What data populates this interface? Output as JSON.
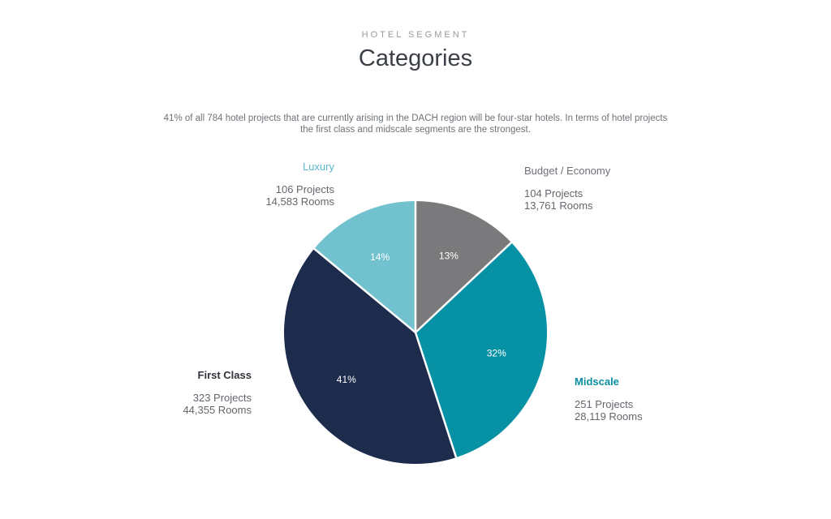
{
  "header": {
    "eyebrow": "HOTEL SEGMENT",
    "title": "Categories"
  },
  "description": {
    "line1": "41% of all 784 hotel projects that are currently arising in the DACH region will be four-star hotels. In terms of hotel projects",
    "line2": "the first class and midscale segments are the strongest."
  },
  "chart_data": {
    "type": "pie",
    "title": "Hotel Segment Categories",
    "total_projects": 784,
    "start_angle_deg": 0,
    "direction": "clockwise",
    "percent_label_color": "#ffffff",
    "separator_color": "#ffffff",
    "slices": [
      {
        "label": "Budget / Economy",
        "percent": 13,
        "projects": "104 Projects",
        "rooms": "13,761 Rooms",
        "color": "#7a7a7c"
      },
      {
        "label": "Midscale",
        "percent": 32,
        "projects": "251 Projects",
        "rooms": "28,119 Rooms",
        "color": "#0791a5"
      },
      {
        "label": "First Class",
        "percent": 41,
        "projects": "323 Projects",
        "rooms": "44,355 Rooms",
        "color": "#1d2b4d"
      },
      {
        "label": "Luxury",
        "percent": 14,
        "projects": "106 Projects",
        "rooms": "14,583 Rooms",
        "color": "#72c1cf"
      }
    ]
  }
}
